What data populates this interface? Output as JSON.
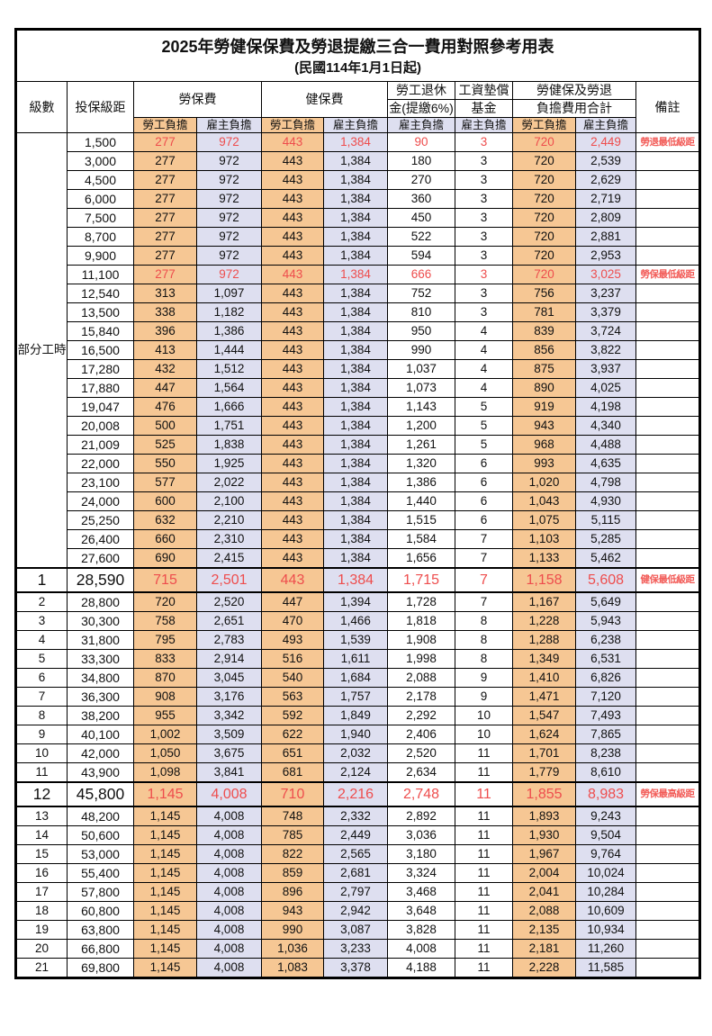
{
  "page": {
    "title": "2025年勞健保保費及勞退提繳三合一費用對照參考用表",
    "subtitle": "(民國114年1月1日起)"
  },
  "colors": {
    "employee_bg": "#f6c794",
    "employer_bg": "#dedff0",
    "highlight_red": "#ee4d4d",
    "remark_red": "#f25b57"
  },
  "table": {
    "headers": {
      "level": "級數",
      "bracket": "投保級距",
      "labor_ins": "勞保費",
      "health_ins": "健保費",
      "pension_line1": "勞工退休",
      "pension_line2": "金(提繳6%)",
      "wage_fund_line1": "工資墊償",
      "wage_fund_line2": "基金",
      "total_line1": "勞健保及勞退",
      "total_line2": "負擔費用合計",
      "remark": "備註",
      "employee": "勞工負擔",
      "employer": "雇主負擔"
    },
    "part_time_label": "部分工時",
    "rows": [
      {
        "level": null,
        "bracket": "1,500",
        "values": [
          "277",
          "972",
          "443",
          "1,384",
          "90",
          "3",
          "720",
          "2,449"
        ],
        "remark": "勞退最低級距",
        "red": true,
        "big": false
      },
      {
        "level": null,
        "bracket": "3,000",
        "values": [
          "277",
          "972",
          "443",
          "1,384",
          "180",
          "3",
          "720",
          "2,539"
        ],
        "remark": "",
        "red": false,
        "big": false
      },
      {
        "level": null,
        "bracket": "4,500",
        "values": [
          "277",
          "972",
          "443",
          "1,384",
          "270",
          "3",
          "720",
          "2,629"
        ],
        "remark": "",
        "red": false,
        "big": false
      },
      {
        "level": null,
        "bracket": "6,000",
        "values": [
          "277",
          "972",
          "443",
          "1,384",
          "360",
          "3",
          "720",
          "2,719"
        ],
        "remark": "",
        "red": false,
        "big": false
      },
      {
        "level": null,
        "bracket": "7,500",
        "values": [
          "277",
          "972",
          "443",
          "1,384",
          "450",
          "3",
          "720",
          "2,809"
        ],
        "remark": "",
        "red": false,
        "big": false
      },
      {
        "level": null,
        "bracket": "8,700",
        "values": [
          "277",
          "972",
          "443",
          "1,384",
          "522",
          "3",
          "720",
          "2,881"
        ],
        "remark": "",
        "red": false,
        "big": false
      },
      {
        "level": null,
        "bracket": "9,900",
        "values": [
          "277",
          "972",
          "443",
          "1,384",
          "594",
          "3",
          "720",
          "2,953"
        ],
        "remark": "",
        "red": false,
        "big": false
      },
      {
        "level": null,
        "bracket": "11,100",
        "values": [
          "277",
          "972",
          "443",
          "1,384",
          "666",
          "3",
          "720",
          "3,025"
        ],
        "remark": "勞保最低級距",
        "red": true,
        "big": false
      },
      {
        "level": null,
        "bracket": "12,540",
        "values": [
          "313",
          "1,097",
          "443",
          "1,384",
          "752",
          "3",
          "756",
          "3,237"
        ],
        "remark": "",
        "red": false,
        "big": false
      },
      {
        "level": null,
        "bracket": "13,500",
        "values": [
          "338",
          "1,182",
          "443",
          "1,384",
          "810",
          "3",
          "781",
          "3,379"
        ],
        "remark": "",
        "red": false,
        "big": false
      },
      {
        "level": null,
        "bracket": "15,840",
        "values": [
          "396",
          "1,386",
          "443",
          "1,384",
          "950",
          "4",
          "839",
          "3,724"
        ],
        "remark": "",
        "red": false,
        "big": false
      },
      {
        "level": null,
        "bracket": "16,500",
        "values": [
          "413",
          "1,444",
          "443",
          "1,384",
          "990",
          "4",
          "856",
          "3,822"
        ],
        "remark": "",
        "red": false,
        "big": false
      },
      {
        "level": null,
        "bracket": "17,280",
        "values": [
          "432",
          "1,512",
          "443",
          "1,384",
          "1,037",
          "4",
          "875",
          "3,937"
        ],
        "remark": "",
        "red": false,
        "big": false
      },
      {
        "level": null,
        "bracket": "17,880",
        "values": [
          "447",
          "1,564",
          "443",
          "1,384",
          "1,073",
          "4",
          "890",
          "4,025"
        ],
        "remark": "",
        "red": false,
        "big": false
      },
      {
        "level": null,
        "bracket": "19,047",
        "values": [
          "476",
          "1,666",
          "443",
          "1,384",
          "1,143",
          "5",
          "919",
          "4,198"
        ],
        "remark": "",
        "red": false,
        "big": false
      },
      {
        "level": null,
        "bracket": "20,008",
        "values": [
          "500",
          "1,751",
          "443",
          "1,384",
          "1,200",
          "5",
          "943",
          "4,340"
        ],
        "remark": "",
        "red": false,
        "big": false
      },
      {
        "level": null,
        "bracket": "21,009",
        "values": [
          "525",
          "1,838",
          "443",
          "1,384",
          "1,261",
          "5",
          "968",
          "4,488"
        ],
        "remark": "",
        "red": false,
        "big": false
      },
      {
        "level": null,
        "bracket": "22,000",
        "values": [
          "550",
          "1,925",
          "443",
          "1,384",
          "1,320",
          "6",
          "993",
          "4,635"
        ],
        "remark": "",
        "red": false,
        "big": false
      },
      {
        "level": null,
        "bracket": "23,100",
        "values": [
          "577",
          "2,022",
          "443",
          "1,384",
          "1,386",
          "6",
          "1,020",
          "4,798"
        ],
        "remark": "",
        "red": false,
        "big": false
      },
      {
        "level": null,
        "bracket": "24,000",
        "values": [
          "600",
          "2,100",
          "443",
          "1,384",
          "1,440",
          "6",
          "1,043",
          "4,930"
        ],
        "remark": "",
        "red": false,
        "big": false
      },
      {
        "level": null,
        "bracket": "25,250",
        "values": [
          "632",
          "2,210",
          "443",
          "1,384",
          "1,515",
          "6",
          "1,075",
          "5,115"
        ],
        "remark": "",
        "red": false,
        "big": false
      },
      {
        "level": null,
        "bracket": "26,400",
        "values": [
          "660",
          "2,310",
          "443",
          "1,384",
          "1,584",
          "7",
          "1,103",
          "5,285"
        ],
        "remark": "",
        "red": false,
        "big": false
      },
      {
        "level": null,
        "bracket": "27,600",
        "values": [
          "690",
          "2,415",
          "443",
          "1,384",
          "1,656",
          "7",
          "1,133",
          "5,462"
        ],
        "remark": "",
        "red": false,
        "big": false
      },
      {
        "level": "1",
        "bracket": "28,590",
        "values": [
          "715",
          "2,501",
          "443",
          "1,384",
          "1,715",
          "7",
          "1,158",
          "5,608"
        ],
        "remark": "健保最低級距",
        "red": true,
        "big": true
      },
      {
        "level": "2",
        "bracket": "28,800",
        "values": [
          "720",
          "2,520",
          "447",
          "1,394",
          "1,728",
          "7",
          "1,167",
          "5,649"
        ],
        "remark": "",
        "red": false,
        "big": false
      },
      {
        "level": "3",
        "bracket": "30,300",
        "values": [
          "758",
          "2,651",
          "470",
          "1,466",
          "1,818",
          "8",
          "1,228",
          "5,943"
        ],
        "remark": "",
        "red": false,
        "big": false
      },
      {
        "level": "4",
        "bracket": "31,800",
        "values": [
          "795",
          "2,783",
          "493",
          "1,539",
          "1,908",
          "8",
          "1,288",
          "6,238"
        ],
        "remark": "",
        "red": false,
        "big": false
      },
      {
        "level": "5",
        "bracket": "33,300",
        "values": [
          "833",
          "2,914",
          "516",
          "1,611",
          "1,998",
          "8",
          "1,349",
          "6,531"
        ],
        "remark": "",
        "red": false,
        "big": false
      },
      {
        "level": "6",
        "bracket": "34,800",
        "values": [
          "870",
          "3,045",
          "540",
          "1,684",
          "2,088",
          "9",
          "1,410",
          "6,826"
        ],
        "remark": "",
        "red": false,
        "big": false
      },
      {
        "level": "7",
        "bracket": "36,300",
        "values": [
          "908",
          "3,176",
          "563",
          "1,757",
          "2,178",
          "9",
          "1,471",
          "7,120"
        ],
        "remark": "",
        "red": false,
        "big": false
      },
      {
        "level": "8",
        "bracket": "38,200",
        "values": [
          "955",
          "3,342",
          "592",
          "1,849",
          "2,292",
          "10",
          "1,547",
          "7,493"
        ],
        "remark": "",
        "red": false,
        "big": false
      },
      {
        "level": "9",
        "bracket": "40,100",
        "values": [
          "1,002",
          "3,509",
          "622",
          "1,940",
          "2,406",
          "10",
          "1,624",
          "7,865"
        ],
        "remark": "",
        "red": false,
        "big": false
      },
      {
        "level": "10",
        "bracket": "42,000",
        "values": [
          "1,050",
          "3,675",
          "651",
          "2,032",
          "2,520",
          "11",
          "1,701",
          "8,238"
        ],
        "remark": "",
        "red": false,
        "big": false
      },
      {
        "level": "11",
        "bracket": "43,900",
        "values": [
          "1,098",
          "3,841",
          "681",
          "2,124",
          "2,634",
          "11",
          "1,779",
          "8,610"
        ],
        "remark": "",
        "red": false,
        "big": false
      },
      {
        "level": "12",
        "bracket": "45,800",
        "values": [
          "1,145",
          "4,008",
          "710",
          "2,216",
          "2,748",
          "11",
          "1,855",
          "8,983"
        ],
        "remark": "勞保最高級距",
        "red": true,
        "big": true
      },
      {
        "level": "13",
        "bracket": "48,200",
        "values": [
          "1,145",
          "4,008",
          "748",
          "2,332",
          "2,892",
          "11",
          "1,893",
          "9,243"
        ],
        "remark": "",
        "red": false,
        "big": false
      },
      {
        "level": "14",
        "bracket": "50,600",
        "values": [
          "1,145",
          "4,008",
          "785",
          "2,449",
          "3,036",
          "11",
          "1,930",
          "9,504"
        ],
        "remark": "",
        "red": false,
        "big": false
      },
      {
        "level": "15",
        "bracket": "53,000",
        "values": [
          "1,145",
          "4,008",
          "822",
          "2,565",
          "3,180",
          "11",
          "1,967",
          "9,764"
        ],
        "remark": "",
        "red": false,
        "big": false
      },
      {
        "level": "16",
        "bracket": "55,400",
        "values": [
          "1,145",
          "4,008",
          "859",
          "2,681",
          "3,324",
          "11",
          "2,004",
          "10,024"
        ],
        "remark": "",
        "red": false,
        "big": false
      },
      {
        "level": "17",
        "bracket": "57,800",
        "values": [
          "1,145",
          "4,008",
          "896",
          "2,797",
          "3,468",
          "11",
          "2,041",
          "10,284"
        ],
        "remark": "",
        "red": false,
        "big": false
      },
      {
        "level": "18",
        "bracket": "60,800",
        "values": [
          "1,145",
          "4,008",
          "943",
          "2,942",
          "3,648",
          "11",
          "2,088",
          "10,609"
        ],
        "remark": "",
        "red": false,
        "big": false
      },
      {
        "level": "19",
        "bracket": "63,800",
        "values": [
          "1,145",
          "4,008",
          "990",
          "3,087",
          "3,828",
          "11",
          "2,135",
          "10,934"
        ],
        "remark": "",
        "red": false,
        "big": false
      },
      {
        "level": "20",
        "bracket": "66,800",
        "values": [
          "1,145",
          "4,008",
          "1,036",
          "3,233",
          "4,008",
          "11",
          "2,181",
          "11,260"
        ],
        "remark": "",
        "red": false,
        "big": false
      },
      {
        "level": "21",
        "bracket": "69,800",
        "values": [
          "1,145",
          "4,008",
          "1,083",
          "3,378",
          "4,188",
          "11",
          "2,228",
          "11,585"
        ],
        "remark": "",
        "red": false,
        "big": false
      }
    ]
  }
}
